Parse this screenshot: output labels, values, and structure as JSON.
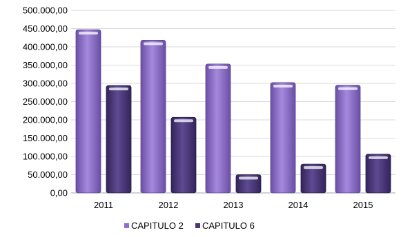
{
  "chart_data": {
    "type": "bar",
    "categories": [
      "2011",
      "2012",
      "2013",
      "2014",
      "2015"
    ],
    "series": [
      {
        "name": "CAPITULO 2",
        "color": "#8f6fc9",
        "values": [
          447000,
          418000,
          353000,
          302000,
          295000
        ]
      },
      {
        "name": "CAPITULO 6",
        "color": "#4a3778",
        "values": [
          294000,
          207000,
          50000,
          79000,
          106000
        ]
      }
    ],
    "ylim": [
      0,
      500000
    ],
    "yticks": [
      0,
      50000,
      100000,
      150000,
      200000,
      250000,
      300000,
      350000,
      400000,
      450000,
      500000
    ],
    "ytick_labels": [
      "0,00",
      "50.000,00",
      "100.000,00",
      "150.000,00",
      "200.000,00",
      "250.000,00",
      "300.000,00",
      "350.000,00",
      "400.000,00",
      "450.000,00",
      "500.000,00"
    ],
    "grid": true,
    "legend_position": "bottom"
  }
}
